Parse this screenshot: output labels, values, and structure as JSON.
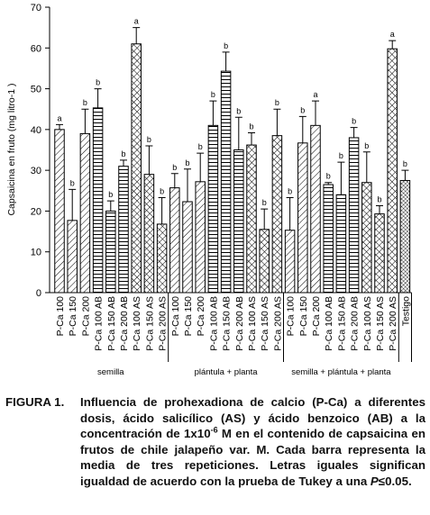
{
  "chart_data": {
    "type": "bar",
    "ylabel": "Capsaicina en fruto (mg litro-1 )",
    "ylim": [
      0,
      70
    ],
    "yticks": [
      0,
      10,
      20,
      30,
      40,
      50,
      60,
      70
    ],
    "color": "#000000",
    "groups": [
      {
        "name": "semilla",
        "categories": [
          "P-Ca 100",
          "P-Ca 150",
          "P-Ca 200",
          "P-Ca 100 AB",
          "P-Ca 150 AB",
          "P-Ca 200 AB",
          "P-Ca 100 AS",
          "P-Ca 150 AS",
          "P-Ca 200 AS"
        ],
        "values": [
          40,
          17.7,
          39,
          45.3,
          20,
          31,
          61,
          29,
          16.8
        ],
        "errors": [
          1.2,
          7.6,
          6,
          4.7,
          2.5,
          1.5,
          4,
          7,
          6.5
        ],
        "letters": [
          "a",
          "b",
          "b",
          "b",
          "b",
          "b",
          "a",
          "b",
          "b"
        ],
        "patterns": [
          "diag",
          "diag",
          "diag",
          "horiz",
          "horiz",
          "horiz",
          "cross",
          "cross",
          "cross"
        ]
      },
      {
        "name": "plántula + planta",
        "categories": [
          "P-Ca 100",
          "P-Ca 150",
          "P-Ca 200",
          "P-Ca 100 AB",
          "P-Ca 150 AB",
          "P-Ca 200 AB",
          "P-Ca 100 AS",
          "P-Ca 150 AS",
          "P-Ca 200 AS"
        ],
        "values": [
          25.7,
          22.3,
          27.2,
          41,
          54.3,
          35,
          36.2,
          15.5,
          38.5
        ],
        "errors": [
          3.5,
          8,
          7,
          6,
          4.7,
          8,
          3,
          5,
          6.5
        ],
        "letters": [
          "b",
          "b",
          "b",
          "b",
          "b",
          "b",
          "b",
          "b",
          "b"
        ],
        "patterns": [
          "diag",
          "diag",
          "diag",
          "horiz",
          "horiz",
          "horiz",
          "cross",
          "cross",
          "cross"
        ]
      },
      {
        "name": "semilla + plántula + planta",
        "categories": [
          "P-Ca 100",
          "P-Ca 150",
          "P-Ca 200",
          "P-Ca 100 AB",
          "P-Ca 150 AB",
          "P-Ca 200 AB",
          "P-Ca 100 AS",
          "P-Ca 150 AS",
          "P-Ca 200 AS"
        ],
        "values": [
          15.3,
          36.7,
          41,
          26.5,
          24,
          38,
          27,
          19.3,
          59.8
        ],
        "errors": [
          8,
          6.5,
          6,
          0.5,
          8,
          2.5,
          7.5,
          2,
          2
        ],
        "letters": [
          "b",
          "b",
          "a",
          "b",
          "b",
          "b",
          "b",
          "b",
          "a"
        ],
        "patterns": [
          "diag",
          "diag",
          "diag",
          "horiz",
          "horiz",
          "horiz",
          "cross",
          "cross",
          "cross"
        ]
      },
      {
        "name": null,
        "categories": [
          "Testigo"
        ],
        "values": [
          27.5
        ],
        "errors": [
          2.5
        ],
        "letters": [
          "b"
        ],
        "patterns": [
          "dense"
        ]
      }
    ]
  },
  "caption": {
    "label": "FIGURA 1.",
    "segments": [
      {
        "text": "Influencia de prohexadiona de calcio (P-Ca) a diferentes dosis, ácido salicílico (AS) y ácido benzoico (AB) a la concentración de 1x10"
      },
      {
        "text": "-6",
        "sup": true
      },
      {
        "text": " M en el contenido de capsaicina en frutos de chile jalapeño var. M. Cada barra representa la media de tres repeticiones. Letras iguales significan igualdad de acuerdo con la prueba de Tukey a una "
      },
      {
        "text": "P",
        "italic": true
      },
      {
        "text": "≤0.05."
      }
    ]
  }
}
